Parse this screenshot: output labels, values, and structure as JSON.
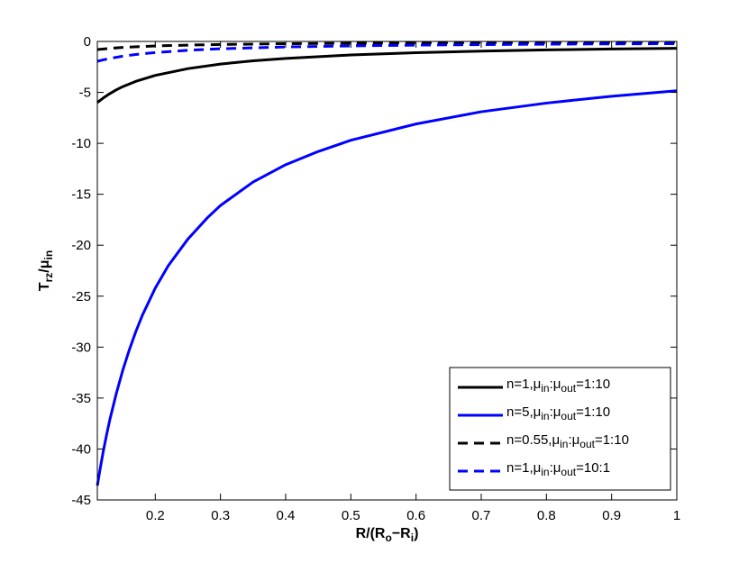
{
  "chart_data": {
    "type": "line",
    "title": "",
    "xlabel": {
      "main": "R/(R",
      "sub1": "o",
      "mid": "−R",
      "sub2": "i",
      "end": ")"
    },
    "ylabel": {
      "main": "T",
      "sub1": "rz",
      "mid": "/μ",
      "sub2": "in"
    },
    "xlim": [
      0.1111,
      1
    ],
    "ylim": [
      -45,
      0
    ],
    "xticks": [
      0.2,
      0.3,
      0.4,
      0.5,
      0.6,
      0.7,
      0.8,
      0.9,
      1
    ],
    "xtick_labels": [
      "0.2",
      "0.3",
      "0.4",
      "0.5",
      "0.6",
      "0.7",
      "0.8",
      "0.9",
      "1"
    ],
    "yticks": [
      0,
      -5,
      -10,
      -15,
      -20,
      -25,
      -30,
      -35,
      -40,
      -45
    ],
    "ytick_labels": [
      "0",
      "-5",
      "-10",
      "-15",
      "-20",
      "-25",
      "-30",
      "-35",
      "-40",
      "-45"
    ],
    "grid": false,
    "legend_position": "bottom-right",
    "series": [
      {
        "legend": {
          "a": "n=1,μ",
          "s1": "in",
          "b": ":μ",
          "s2": "out",
          "c": "=1:10"
        },
        "color": "#000000",
        "dash": "solid",
        "x": [
          0.1111,
          0.12,
          0.13,
          0.14,
          0.15,
          0.17,
          0.2,
          0.25,
          0.3,
          0.35,
          0.4,
          0.5,
          0.6,
          0.7,
          0.8,
          0.9,
          1.0
        ],
        "y": [
          -6.0,
          -5.56,
          -5.13,
          -4.76,
          -4.44,
          -3.92,
          -3.33,
          -2.67,
          -2.22,
          -1.9,
          -1.67,
          -1.33,
          -1.11,
          -0.95,
          -0.83,
          -0.74,
          -0.67
        ]
      },
      {
        "legend": {
          "a": "n=5,μ",
          "s1": "in",
          "b": ":μ",
          "s2": "out",
          "c": "=1:10"
        },
        "color": "#0000ff",
        "dash": "solid",
        "x": [
          0.1111,
          0.115,
          0.12,
          0.125,
          0.13,
          0.14,
          0.15,
          0.16,
          0.17,
          0.18,
          0.2,
          0.22,
          0.25,
          0.28,
          0.3,
          0.35,
          0.4,
          0.45,
          0.5,
          0.6,
          0.7,
          0.8,
          0.9,
          1.0
        ],
        "y": [
          -43.6,
          -42.1,
          -40.3,
          -38.7,
          -37.2,
          -34.6,
          -32.3,
          -30.3,
          -28.5,
          -26.9,
          -24.2,
          -22.0,
          -19.4,
          -17.3,
          -16.1,
          -13.8,
          -12.1,
          -10.8,
          -9.7,
          -8.1,
          -6.9,
          -6.05,
          -5.38,
          -4.84
        ]
      },
      {
        "legend": {
          "a": "n=0.55,μ",
          "s1": "in",
          "b": ":μ",
          "s2": "out",
          "c": "=1:10"
        },
        "color": "#000000",
        "dash": "dashed",
        "x": [
          0.1111,
          0.13,
          0.15,
          0.2,
          0.25,
          0.3,
          0.4,
          0.5,
          0.6,
          0.7,
          0.8,
          0.9,
          1.0
        ],
        "y": [
          -0.8,
          -0.68,
          -0.59,
          -0.44,
          -0.36,
          -0.3,
          -0.22,
          -0.18,
          -0.15,
          -0.13,
          -0.11,
          -0.1,
          -0.09
        ]
      },
      {
        "legend": {
          "a": "n=1,μ",
          "s1": "in",
          "b": ":μ",
          "s2": "out",
          "c": "=10:1"
        },
        "color": "#0000ff",
        "dash": "dashed",
        "x": [
          0.1111,
          0.12,
          0.13,
          0.15,
          0.17,
          0.2,
          0.25,
          0.3,
          0.4,
          0.5,
          0.6,
          0.7,
          0.8,
          0.9,
          1.0
        ],
        "y": [
          -1.95,
          -1.81,
          -1.67,
          -1.45,
          -1.28,
          -1.09,
          -0.87,
          -0.72,
          -0.54,
          -0.44,
          -0.36,
          -0.31,
          -0.27,
          -0.24,
          -0.22
        ]
      }
    ]
  }
}
